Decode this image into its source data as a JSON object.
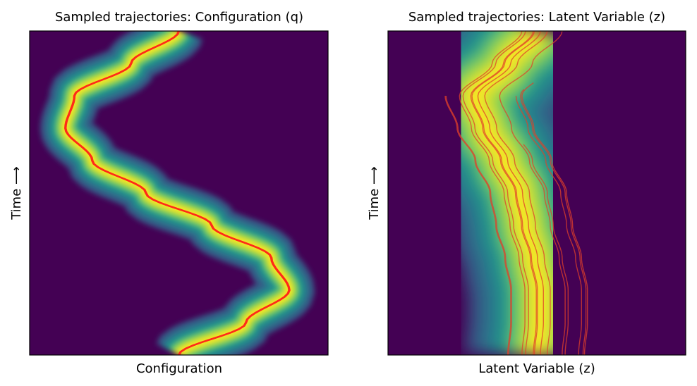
{
  "chart_data": [
    {
      "type": "heatmap",
      "title": "Sampled trajectories: Configuration (q)",
      "xlabel": "Configuration",
      "ylabel": "Time ⟶",
      "xlim": [
        -1,
        1
      ],
      "ylim": [
        0,
        1
      ],
      "colormap": "viridis",
      "trajectory_color": "#ff2a1a",
      "density_width": 0.07,
      "mean_path": {
        "t": [
          0.0,
          0.1,
          0.2,
          0.3,
          0.4,
          0.5,
          0.6,
          0.7,
          0.8,
          0.9,
          1.0
        ],
        "x": [
          0.0,
          0.45,
          0.74,
          0.62,
          0.22,
          -0.22,
          -0.58,
          -0.76,
          -0.7,
          -0.32,
          0.0
        ]
      },
      "series": [
        {
          "offset": -0.05
        },
        {
          "offset": -0.03
        },
        {
          "offset": -0.015
        },
        {
          "offset": 0.0
        },
        {
          "offset": 0.015
        },
        {
          "offset": 0.03
        },
        {
          "offset": 0.05
        }
      ]
    },
    {
      "type": "heatmap",
      "title": "Sampled trajectories: Latent Variable (z)",
      "xlabel": "Latent Variable (z)",
      "ylabel": "Time ⟶",
      "xlim": [
        -1,
        1
      ],
      "ylim": [
        0,
        1
      ],
      "colormap": "viridis",
      "trajectory_color": "#e0402a",
      "density_width": 0.2,
      "mean_path": {
        "t": [
          0.0,
          0.1,
          0.2,
          0.3,
          0.4,
          0.5,
          0.6,
          0.7,
          0.8,
          0.9,
          1.0
        ],
        "x": [
          0.0,
          0.02,
          0.02,
          -0.02,
          -0.08,
          -0.12,
          -0.22,
          -0.34,
          -0.42,
          -0.2,
          0.0
        ]
      },
      "series": [
        {
          "offset": -0.98,
          "t_end": 0.8
        },
        {
          "offset": -0.95,
          "t_end": 0.8
        },
        {
          "offset": -0.5
        },
        {
          "offset": -0.38
        },
        {
          "offset": -0.12
        },
        {
          "offset": -0.08
        },
        {
          "offset": 0.12
        },
        {
          "offset": 0.35
        },
        {
          "offset": 0.85
        },
        {
          "offset": 0.95,
          "t_end": 0.65
        },
        {
          "offset": 1.4,
          "t_end": 0.8
        },
        {
          "offset": 1.55,
          "t_end": 0.82
        },
        {
          "offset": 1.6,
          "t_end": 0.84
        }
      ]
    }
  ]
}
